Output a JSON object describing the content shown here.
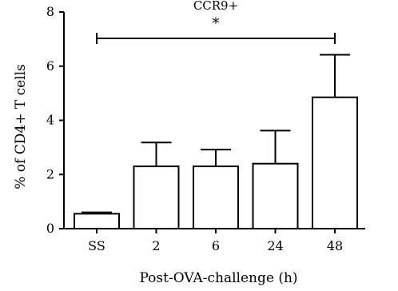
{
  "chart_data": {
    "type": "bar",
    "title": "CCR9+",
    "xlabel": "Post-OVA-challenge (h)",
    "ylabel": "% of CD4+ T cells",
    "categories": [
      "SS",
      "2",
      "6",
      "24",
      "48"
    ],
    "values": [
      0.55,
      2.3,
      2.3,
      2.4,
      4.85
    ],
    "error_upper": [
      0.6,
      3.18,
      2.92,
      3.62,
      6.42
    ],
    "ylim": [
      0,
      8
    ],
    "yticks": [
      0,
      2,
      4,
      6,
      8
    ],
    "bar_fill": "#ffffff",
    "stroke_color": "#000000",
    "significance": {
      "from_category": "SS",
      "to_category": "48",
      "label": "*"
    }
  }
}
